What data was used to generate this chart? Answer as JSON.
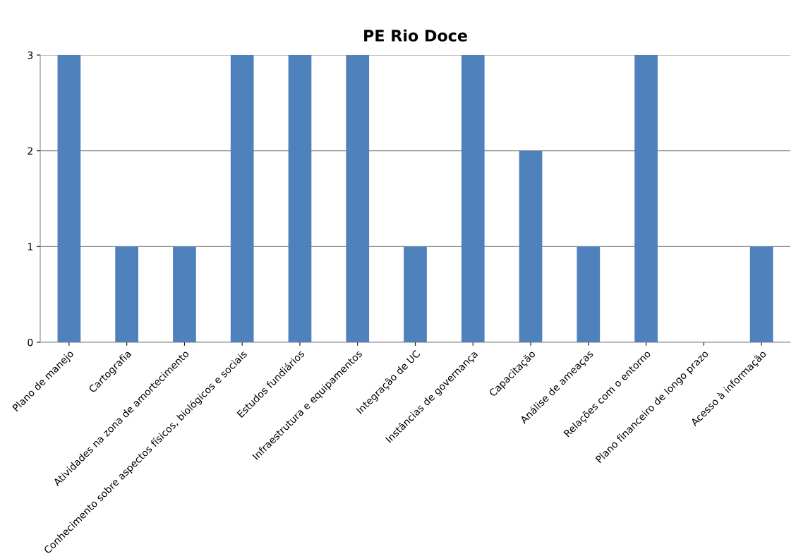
{
  "chart_data": {
    "type": "bar",
    "title": "PE Rio Doce",
    "categories": [
      "Plano de manejo",
      "Cartografia",
      "Atividades na zona de amortecimento",
      "Conhecimento sobre aspectos físicos, biológicos e sociais",
      "Estudos fundiários",
      "Infraestrutura e equipamentos",
      "Integração de UC",
      "Instâncias de governança",
      "Capacitação",
      "Análise de ameaças",
      "Relações com o entorno",
      "Plano financeiro de longo prazo",
      "Acesso à informação"
    ],
    "values": [
      3,
      1,
      1,
      3,
      3,
      3,
      1,
      3,
      2,
      1,
      3,
      0,
      1
    ],
    "color": "#4f81bd",
    "ylim": [
      0,
      3
    ],
    "yticks": [
      0,
      1,
      2,
      3
    ],
    "grid": "y"
  }
}
